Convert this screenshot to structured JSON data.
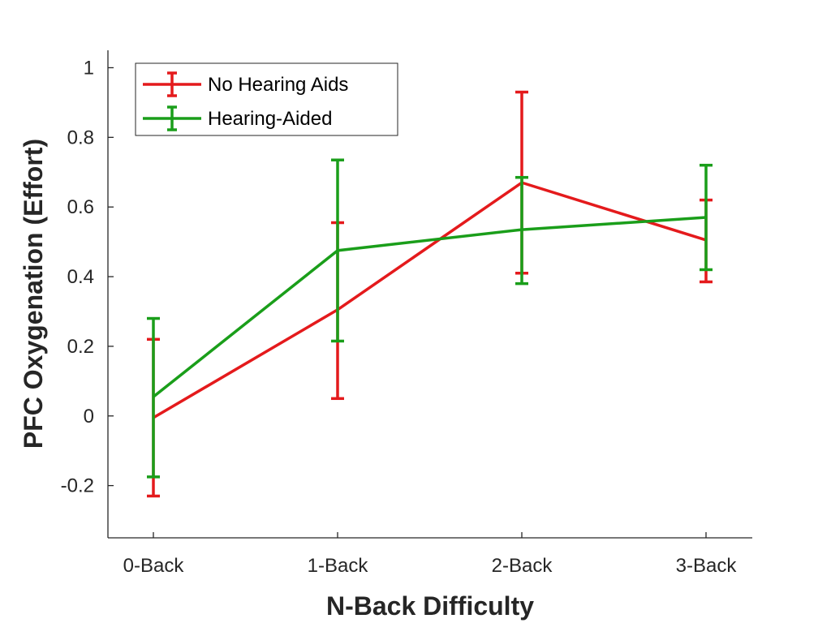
{
  "chart_data": {
    "type": "line",
    "title": "",
    "xlabel": "N-Back Difficulty",
    "ylabel": "PFC Oxygenation (Effort)",
    "categories": [
      "0-Back",
      "1-Back",
      "2-Back",
      "3-Back"
    ],
    "ylim": [
      -0.35,
      1.05
    ],
    "yticks": [
      -0.2,
      0,
      0.2,
      0.4,
      0.6,
      0.8,
      1
    ],
    "ytick_labels": [
      "-0.2",
      "0",
      "0.2",
      "0.4",
      "0.6",
      "0.8",
      "1"
    ],
    "grid": false,
    "legend_position": "top-left",
    "error_bars": true,
    "series": [
      {
        "name": "No Hearing Aids",
        "color": "#e41a1c",
        "values": [
          -0.005,
          0.305,
          0.67,
          0.505
        ],
        "lower": [
          -0.23,
          0.05,
          0.41,
          0.385
        ],
        "upper": [
          0.22,
          0.555,
          0.93,
          0.62
        ]
      },
      {
        "name": "Hearing-Aided",
        "color": "#1a9e1a",
        "values": [
          0.055,
          0.475,
          0.535,
          0.57
        ],
        "lower": [
          -0.175,
          0.215,
          0.38,
          0.42
        ],
        "upper": [
          0.28,
          0.735,
          0.685,
          0.72
        ]
      }
    ]
  }
}
